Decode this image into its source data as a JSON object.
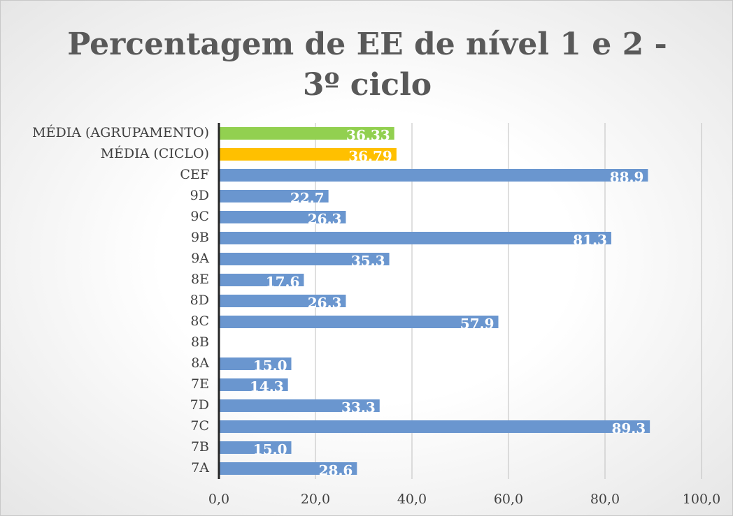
{
  "chart_data": {
    "type": "barh",
    "title": "Percentagem de EE de nível 1 e 2 - 3º ciclo",
    "categories": [
      "MÉDIA (AGRUPAMENTO)",
      "MÉDIA (CICLO)",
      "CEF",
      "9D",
      "9C",
      "9B",
      "9A",
      "8E",
      "8D",
      "8C",
      "8B",
      "8A",
      "7E",
      "7D",
      "7C",
      "7B",
      "7A"
    ],
    "values": [
      36.33,
      36.79,
      88.9,
      22.7,
      26.3,
      81.3,
      35.3,
      17.6,
      26.3,
      57.9,
      null,
      15.0,
      14.3,
      33.3,
      89.3,
      15.0,
      28.6
    ],
    "value_labels": [
      "36.33",
      "36.79",
      "88.9",
      "22.7",
      "26.3",
      "81.3",
      "35.3",
      "17.6",
      "26.3",
      "57.9",
      null,
      "15.0",
      "14.3",
      "33.3",
      "89.3",
      "15.0",
      "28.6"
    ],
    "colors": [
      "#92d050",
      "#ffc000",
      "#6a96cf",
      "#6a96cf",
      "#6a96cf",
      "#6a96cf",
      "#6a96cf",
      "#6a96cf",
      "#6a96cf",
      "#6a96cf",
      "#6a96cf",
      "#6a96cf",
      "#6a96cf",
      "#6a96cf",
      "#6a96cf",
      "#6a96cf",
      "#6a96cf"
    ],
    "xlim": [
      0,
      100
    ],
    "xticks": [
      {
        "value": 0,
        "label": "0,0"
      },
      {
        "value": 20,
        "label": "20,0"
      },
      {
        "value": 40,
        "label": "40,0"
      },
      {
        "value": 60,
        "label": "60,0"
      },
      {
        "value": 80,
        "label": "80,0"
      },
      {
        "value": 100,
        "label": "100,0"
      }
    ],
    "grid": true
  }
}
